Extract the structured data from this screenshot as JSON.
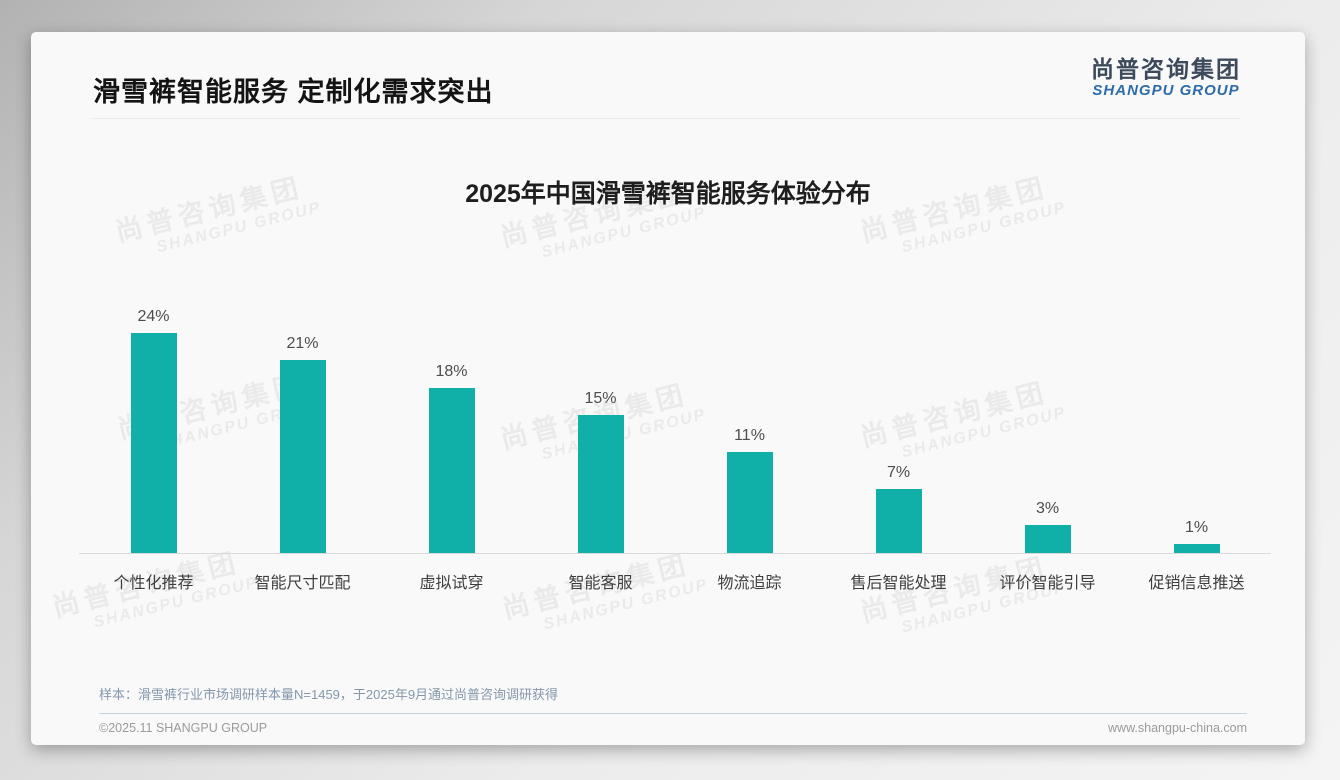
{
  "slide": {
    "title": "滑雪裤智能服务 定制化需求突出",
    "logo": {
      "cn": "尚普咨询集团",
      "en": "SHANGPU GROUP"
    },
    "watermark": {
      "line1": "尚普咨询集团",
      "line2": "SHANGPU GROUP"
    },
    "source_note": "样本：滑雪裤行业市场调研样本量N=1459，于2025年9月通过尚普咨询调研获得",
    "footer": {
      "copyright": "©2025.11 SHANGPU GROUP",
      "website": "www.shangpu-china.com"
    }
  },
  "chart_data": {
    "type": "bar",
    "title": "2025年中国滑雪裤智能服务体验分布",
    "categories": [
      "个性化推荐",
      "智能尺寸匹配",
      "虚拟试穿",
      "智能客服",
      "物流追踪",
      "售后智能处理",
      "评价智能引导",
      "促销信息推送"
    ],
    "values": [
      24,
      21,
      18,
      15,
      11,
      7,
      3,
      1
    ],
    "unit": "%",
    "value_labels": true,
    "bar_color": "#10AFA8",
    "label_color": "#4d4d4d",
    "xlabel": "",
    "ylabel": "",
    "ylim": [
      0,
      26
    ],
    "grid": false,
    "legend": "none"
  }
}
